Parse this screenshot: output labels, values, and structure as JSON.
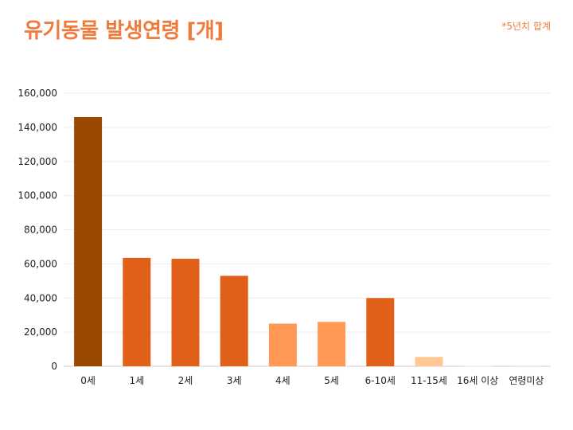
{
  "header": {
    "title": "유기동물 발생연령 [개]",
    "note": "*5년치 합계"
  },
  "chart_data": {
    "type": "bar",
    "title": "유기동물 발생연령 [개]",
    "subtitle": "*5년치 합계",
    "xlabel": "",
    "ylabel": "",
    "categories": [
      "0세",
      "1세",
      "2세",
      "3세",
      "4세",
      "5세",
      "6-10세",
      "11-15세",
      "16세 이상",
      "연령미상"
    ],
    "values": [
      146000,
      63500,
      63000,
      53000,
      25000,
      26000,
      40000,
      5500,
      300,
      500
    ],
    "colors": [
      "#9a4a00",
      "#e0601a",
      "#e0601a",
      "#e0601a",
      "#ff9955",
      "#ff9955",
      "#e0601a",
      "#ffc896",
      "#ffe6d2",
      "#ffe6d2"
    ],
    "ylim": [
      0,
      160000
    ],
    "yticks": [
      "0",
      "20,000",
      "40,000",
      "60,000",
      "80,000",
      "100,000",
      "120,000",
      "140,000",
      "160,000"
    ],
    "grid": true,
    "legend": "none"
  }
}
